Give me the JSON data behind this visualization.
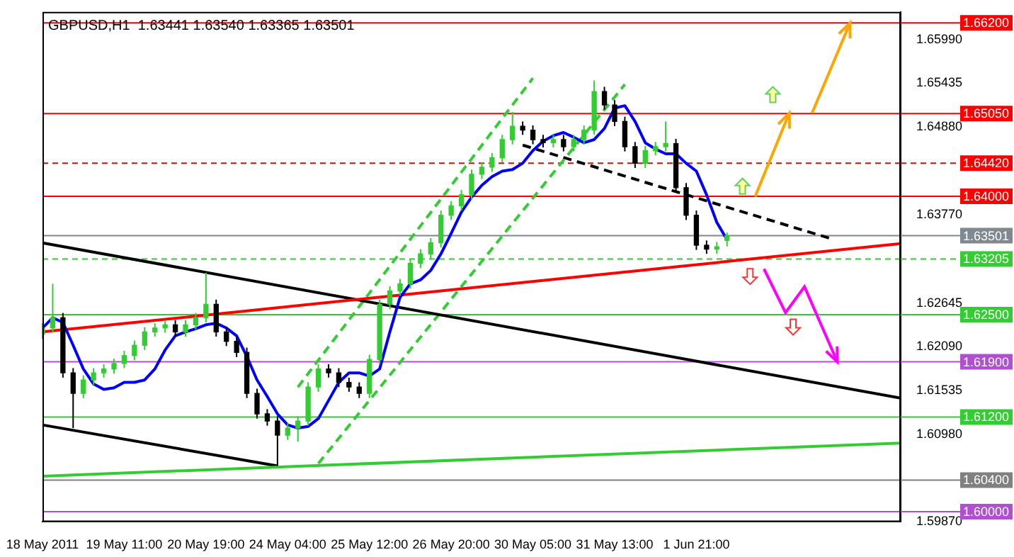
{
  "chart_data": {
    "type": "candlestick",
    "title": "GBPUSD,H1  1.63441 1.63540 1.63365 1.63501",
    "categories": [
      "18 May 2011",
      null,
      null,
      null,
      null,
      null,
      null,
      null,
      "19 May 11:00",
      null,
      null,
      null,
      null,
      null,
      null,
      null,
      "20 May 19:00",
      null,
      null,
      null,
      null,
      null,
      null,
      null,
      "24 May 04:00",
      null,
      null,
      null,
      null,
      null,
      null,
      null,
      "25 May 12:00",
      null,
      null,
      null,
      null,
      null,
      null,
      null,
      "26 May 20:00",
      null,
      null,
      null,
      null,
      null,
      null,
      null,
      "30 May 05:00",
      null,
      null,
      null,
      null,
      null,
      null,
      null,
      "31 May 13:00",
      null,
      null,
      null,
      null,
      null,
      null,
      null,
      "1 Jun 21:00",
      null,
      null,
      null,
      null,
      null,
      null,
      null,
      null,
      null,
      null,
      null,
      null,
      null,
      null,
      null,
      null,
      null,
      null,
      null,
      null
    ],
    "ohlc": [
      [
        1.6225,
        1.6239,
        1.6219,
        1.6233
      ],
      [
        1.6233,
        1.6289,
        1.6227,
        1.6246
      ],
      [
        1.6246,
        1.6252,
        1.617,
        1.6176
      ],
      [
        1.6176,
        1.6182,
        1.6106,
        1.615
      ],
      [
        1.615,
        1.6173,
        1.6144,
        1.6167
      ],
      [
        1.6167,
        1.6182,
        1.6161,
        1.6176
      ],
      [
        1.6176,
        1.6187,
        1.617,
        1.6181
      ],
      [
        1.6181,
        1.6194,
        1.6175,
        1.6188
      ],
      [
        1.6188,
        1.6204,
        1.6182,
        1.6198
      ],
      [
        1.6198,
        1.6217,
        1.6192,
        1.6211
      ],
      [
        1.6211,
        1.6234,
        1.6205,
        1.6228
      ],
      [
        1.6228,
        1.6239,
        1.6222,
        1.6233
      ],
      [
        1.6233,
        1.6243,
        1.6227,
        1.6237
      ],
      [
        1.6237,
        1.6243,
        1.6222,
        1.6228
      ],
      [
        1.6228,
        1.6243,
        1.6222,
        1.6237
      ],
      [
        1.6237,
        1.6252,
        1.6231,
        1.6246
      ],
      [
        1.6246,
        1.6303,
        1.624,
        1.6263
      ],
      [
        1.6263,
        1.6269,
        1.6222,
        1.6228
      ],
      [
        1.6228,
        1.6234,
        1.621,
        1.6216
      ],
      [
        1.6216,
        1.6222,
        1.6196,
        1.6202
      ],
      [
        1.6202,
        1.6208,
        1.6144,
        1.615
      ],
      [
        1.615,
        1.6156,
        1.6118,
        1.6124
      ],
      [
        1.6124,
        1.613,
        1.6109,
        1.6115
      ],
      [
        1.6115,
        1.6121,
        1.6058,
        1.6097
      ],
      [
        1.6097,
        1.6112,
        1.6091,
        1.6106
      ],
      [
        1.6106,
        1.6121,
        1.6089,
        1.6115
      ],
      [
        1.6115,
        1.6164,
        1.6109,
        1.6158
      ],
      [
        1.6158,
        1.6187,
        1.6152,
        1.6181
      ],
      [
        1.6181,
        1.6187,
        1.617,
        1.6176
      ],
      [
        1.6176,
        1.6182,
        1.6158,
        1.6164
      ],
      [
        1.6164,
        1.617,
        1.6152,
        1.6158
      ],
      [
        1.6158,
        1.6164,
        1.6144,
        1.615
      ],
      [
        1.615,
        1.6199,
        1.6144,
        1.6193
      ],
      [
        1.6193,
        1.6269,
        1.6187,
        1.6263
      ],
      [
        1.6263,
        1.6286,
        1.6257,
        1.628
      ],
      [
        1.628,
        1.6295,
        1.6274,
        1.6289
      ],
      [
        1.6289,
        1.6321,
        1.6283,
        1.6315
      ],
      [
        1.6315,
        1.6333,
        1.6309,
        1.6327
      ],
      [
        1.6327,
        1.6347,
        1.6321,
        1.6341
      ],
      [
        1.6341,
        1.6382,
        1.6335,
        1.6376
      ],
      [
        1.6376,
        1.6394,
        1.637,
        1.6388
      ],
      [
        1.6388,
        1.6408,
        1.6382,
        1.6402
      ],
      [
        1.6402,
        1.6434,
        1.6396,
        1.6428
      ],
      [
        1.6428,
        1.6443,
        1.6422,
        1.6437
      ],
      [
        1.6437,
        1.6455,
        1.6431,
        1.6449
      ],
      [
        1.6449,
        1.6478,
        1.6443,
        1.6472
      ],
      [
        1.6472,
        1.6507,
        1.6466,
        1.6489
      ],
      [
        1.6489,
        1.6495,
        1.6478,
        1.6484
      ],
      [
        1.6484,
        1.649,
        1.6466,
        1.6472
      ],
      [
        1.6472,
        1.6478,
        1.6462,
        1.6468
      ],
      [
        1.6468,
        1.6478,
        1.6462,
        1.6472
      ],
      [
        1.6472,
        1.6478,
        1.6457,
        1.6463
      ],
      [
        1.6463,
        1.6478,
        1.6457,
        1.6472
      ],
      [
        1.6472,
        1.649,
        1.6466,
        1.6484
      ],
      [
        1.6484,
        1.6547,
        1.6478,
        1.6533
      ],
      [
        1.6533,
        1.6539,
        1.651,
        1.6516
      ],
      [
        1.6516,
        1.6522,
        1.6489,
        1.6495
      ],
      [
        1.6495,
        1.6501,
        1.6457,
        1.6463
      ],
      [
        1.6463,
        1.6469,
        1.6436,
        1.6442
      ],
      [
        1.6442,
        1.6464,
        1.6436,
        1.6458
      ],
      [
        1.6458,
        1.6469,
        1.6452,
        1.6463
      ],
      [
        1.6463,
        1.6495,
        1.6457,
        1.6467
      ],
      [
        1.6467,
        1.6473,
        1.6405,
        1.6411
      ],
      [
        1.6411,
        1.6417,
        1.637,
        1.6376
      ],
      [
        1.6376,
        1.6382,
        1.6332,
        1.6338
      ],
      [
        1.6338,
        1.6344,
        1.6327,
        1.6333
      ],
      [
        1.6333,
        1.6342,
        1.6327,
        1.6336
      ],
      [
        1.63441,
        1.6354,
        1.63365,
        1.63501
      ],
      null,
      null,
      null,
      null,
      null,
      null,
      null,
      null,
      null,
      null,
      null,
      null,
      null,
      null,
      null,
      null,
      null
    ],
    "series": [
      {
        "type": "line",
        "color": "#0000ff",
        "values": [
          1.6233,
          1.6246,
          1.624,
          1.6211,
          1.6181,
          1.6162,
          1.6155,
          1.6157,
          1.6164,
          1.6164,
          1.6167,
          1.6181,
          1.6205,
          1.6223,
          1.6228,
          1.6232,
          1.6237,
          1.6239,
          1.6233,
          1.6223,
          1.6197,
          1.6167,
          1.6146,
          1.6124,
          1.611,
          1.6106,
          1.6108,
          1.6118,
          1.6141,
          1.6164,
          1.6176,
          1.6176,
          1.6172,
          1.6181,
          1.6228,
          1.6272,
          1.6289,
          1.6294,
          1.6306,
          1.6327,
          1.6353,
          1.638,
          1.6399,
          1.6414,
          1.6425,
          1.6432,
          1.6434,
          1.6442,
          1.6458,
          1.647,
          1.6477,
          1.6481,
          1.6475,
          1.6468,
          1.6472,
          1.6486,
          1.6512,
          1.6515,
          1.6495,
          1.6468,
          1.646,
          1.6454,
          1.6454,
          1.6442,
          1.6432,
          1.6402,
          1.6367,
          1.6345,
          null,
          null,
          null,
          null,
          null,
          null,
          null,
          null,
          null,
          null,
          null,
          null,
          null,
          null,
          null,
          null,
          null
        ]
      },
      {
        "type": "line",
        "color": "#ff0000",
        "values": [
          1.6228,
          null,
          null,
          null,
          null,
          null,
          null,
          null,
          null,
          null,
          null,
          null,
          null,
          null,
          null,
          null,
          null,
          null,
          null,
          null,
          null,
          null,
          null,
          null,
          null,
          null,
          null,
          null,
          null,
          null,
          null,
          null,
          null,
          null,
          null,
          null,
          null,
          null,
          null,
          null,
          null,
          null,
          null,
          null,
          null,
          null,
          null,
          null,
          null,
          null,
          null,
          null,
          null,
          null,
          null,
          null,
          null,
          null,
          null,
          null,
          null,
          null,
          null,
          null,
          null,
          null,
          null,
          null,
          null,
          null,
          null,
          null,
          null,
          null,
          null,
          null,
          null,
          null,
          null,
          null,
          null,
          null,
          null,
          null,
          1.634
        ]
      },
      {
        "type": "line",
        "color": "#33cc33",
        "values": [
          1.6045,
          null,
          null,
          null,
          null,
          null,
          null,
          null,
          null,
          null,
          null,
          null,
          null,
          null,
          null,
          null,
          null,
          null,
          null,
          null,
          null,
          null,
          null,
          null,
          null,
          null,
          null,
          null,
          null,
          null,
          null,
          null,
          null,
          null,
          null,
          null,
          null,
          null,
          null,
          null,
          null,
          null,
          null,
          null,
          null,
          null,
          null,
          null,
          null,
          null,
          null,
          null,
          null,
          null,
          null,
          null,
          null,
          null,
          null,
          null,
          null,
          null,
          null,
          null,
          null,
          null,
          null,
          null,
          null,
          null,
          null,
          null,
          null,
          null,
          null,
          null,
          null,
          null,
          null,
          null,
          null,
          null,
          null,
          null,
          1.6087
        ]
      },
      {
        "type": "line",
        "color": "#000000",
        "values": [
          1.6341,
          null,
          null,
          null,
          null,
          null,
          null,
          null,
          null,
          null,
          null,
          null,
          null,
          null,
          null,
          null,
          null,
          null,
          null,
          null,
          null,
          null,
          null,
          null,
          null,
          null,
          null,
          null,
          null,
          null,
          null,
          null,
          null,
          null,
          null,
          null,
          null,
          null,
          null,
          null,
          null,
          null,
          null,
          null,
          null,
          null,
          null,
          null,
          null,
          null,
          null,
          null,
          null,
          null,
          null,
          null,
          null,
          null,
          null,
          null,
          null,
          null,
          null,
          null,
          null,
          null,
          null,
          null,
          null,
          null,
          null,
          null,
          null,
          null,
          null,
          null,
          null,
          null,
          null,
          null,
          null,
          null,
          null,
          null,
          1.6144
        ]
      },
      {
        "type": "line",
        "color": "#000000",
        "values": [
          1.611,
          null,
          null,
          null,
          null,
          null,
          null,
          null,
          null,
          null,
          null,
          null,
          null,
          null,
          null,
          null,
          null,
          null,
          null,
          null,
          null,
          null,
          null,
          1.6058,
          null,
          null,
          null,
          null,
          null,
          null,
          null,
          null,
          null,
          null,
          null,
          null,
          null,
          null,
          null,
          null,
          null,
          null,
          null,
          null,
          null,
          null,
          null,
          null,
          null,
          null,
          null,
          null,
          null,
          null,
          null,
          null,
          null,
          null,
          null,
          null,
          null,
          null,
          null,
          null,
          null,
          null,
          null,
          null,
          null,
          null,
          null,
          null,
          null,
          null,
          null,
          null,
          null,
          null,
          null,
          null,
          null,
          null,
          null,
          null,
          null
        ]
      },
      {
        "type": "line",
        "color": "#000000",
        "line_style": "dashed",
        "values": [
          null,
          null,
          null,
          null,
          null,
          null,
          null,
          null,
          null,
          null,
          null,
          null,
          null,
          null,
          null,
          null,
          null,
          null,
          null,
          null,
          null,
          null,
          null,
          null,
          null,
          null,
          null,
          null,
          null,
          null,
          null,
          null,
          null,
          null,
          null,
          null,
          null,
          null,
          null,
          null,
          null,
          null,
          null,
          null,
          null,
          null,
          null,
          1.6465,
          null,
          null,
          null,
          null,
          null,
          null,
          null,
          null,
          null,
          null,
          null,
          null,
          null,
          null,
          null,
          null,
          null,
          null,
          null,
          null,
          null,
          null,
          null,
          null,
          null,
          null,
          null,
          null,
          null,
          1.6347,
          null,
          null,
          null,
          null,
          null,
          null,
          null
        ]
      },
      {
        "type": "line",
        "color": "#33cc33",
        "line_style": "dashed",
        "values": [
          null,
          null,
          null,
          null,
          null,
          null,
          null,
          null,
          null,
          null,
          null,
          null,
          null,
          null,
          null,
          null,
          null,
          null,
          null,
          null,
          null,
          null,
          null,
          null,
          null,
          1.6158,
          null,
          null,
          null,
          null,
          null,
          null,
          null,
          null,
          null,
          null,
          null,
          null,
          null,
          null,
          null,
          null,
          null,
          null,
          null,
          null,
          null,
          null,
          1.655,
          null,
          null,
          null,
          null,
          null,
          null,
          null,
          null,
          null,
          null,
          null,
          null,
          null,
          null,
          null,
          null,
          null,
          null,
          null,
          null,
          null,
          null,
          null,
          null,
          null,
          null,
          null,
          null,
          null,
          null,
          null,
          null,
          null,
          null,
          null,
          null
        ]
      },
      {
        "type": "line",
        "color": "#33cc33",
        "line_style": "dashed",
        "values": [
          null,
          null,
          null,
          null,
          null,
          null,
          null,
          null,
          null,
          null,
          null,
          null,
          null,
          null,
          null,
          null,
          null,
          null,
          null,
          null,
          null,
          null,
          null,
          null,
          null,
          null,
          null,
          1.6061,
          null,
          null,
          null,
          null,
          null,
          null,
          null,
          null,
          null,
          null,
          null,
          null,
          null,
          null,
          null,
          null,
          null,
          null,
          null,
          null,
          null,
          null,
          null,
          null,
          null,
          null,
          null,
          null,
          null,
          1.6542,
          null,
          null,
          null,
          null,
          null,
          null,
          null,
          null,
          null,
          null,
          null,
          null,
          null,
          null,
          null,
          null,
          null,
          null,
          null,
          null,
          null,
          null,
          null,
          null,
          null,
          null,
          null
        ]
      }
    ],
    "ylim": [
      1.5987,
      1.6634
    ],
    "yticks": [
      {
        "value": 1.5987,
        "label": "1.59870"
      },
      {
        "value": 1.6098,
        "label": "1.60980"
      },
      {
        "value": 1.61535,
        "label": "1.61535"
      },
      {
        "value": 1.6209,
        "label": "1.62090"
      },
      {
        "value": 1.62645,
        "label": "1.62645"
      },
      {
        "value": 1.6377,
        "label": "1.63770"
      },
      {
        "value": 1.6488,
        "label": "1.64880"
      },
      {
        "value": 1.65435,
        "label": "1.65435"
      },
      {
        "value": 1.6599,
        "label": "1.65990"
      }
    ],
    "ref_lines": [
      {
        "axis": "y",
        "value": 1.662,
        "label": "1.66200",
        "color": "#ff0000"
      },
      {
        "axis": "y",
        "value": 1.6505,
        "label": "1.65050",
        "color": "#ff0000"
      },
      {
        "axis": "y",
        "value": 1.6442,
        "label": "1.64420",
        "color": "#ff0000",
        "line_style": "dashed"
      },
      {
        "axis": "y",
        "value": 1.64,
        "label": "1.64000",
        "color": "#ff0000"
      },
      {
        "axis": "y",
        "value": 1.63501,
        "label": "1.63501",
        "color": "#808890"
      },
      {
        "axis": "y",
        "value": 1.63205,
        "label": "1.63205",
        "color": "#33cc33",
        "line_style": "dashed"
      },
      {
        "axis": "y",
        "value": 1.625,
        "label": "1.62500",
        "color": "#33cc33"
      },
      {
        "axis": "y",
        "value": 1.619,
        "label": "1.61900",
        "color": "#b050d0"
      },
      {
        "axis": "y",
        "value": 1.612,
        "label": "1.61200",
        "color": "#33cc33"
      },
      {
        "axis": "y",
        "value": 1.604,
        "label": "1.60400",
        "color": "#808080"
      },
      {
        "axis": "y",
        "value": 1.6,
        "label": "1.60000",
        "color": "#b050d0"
      }
    ]
  }
}
